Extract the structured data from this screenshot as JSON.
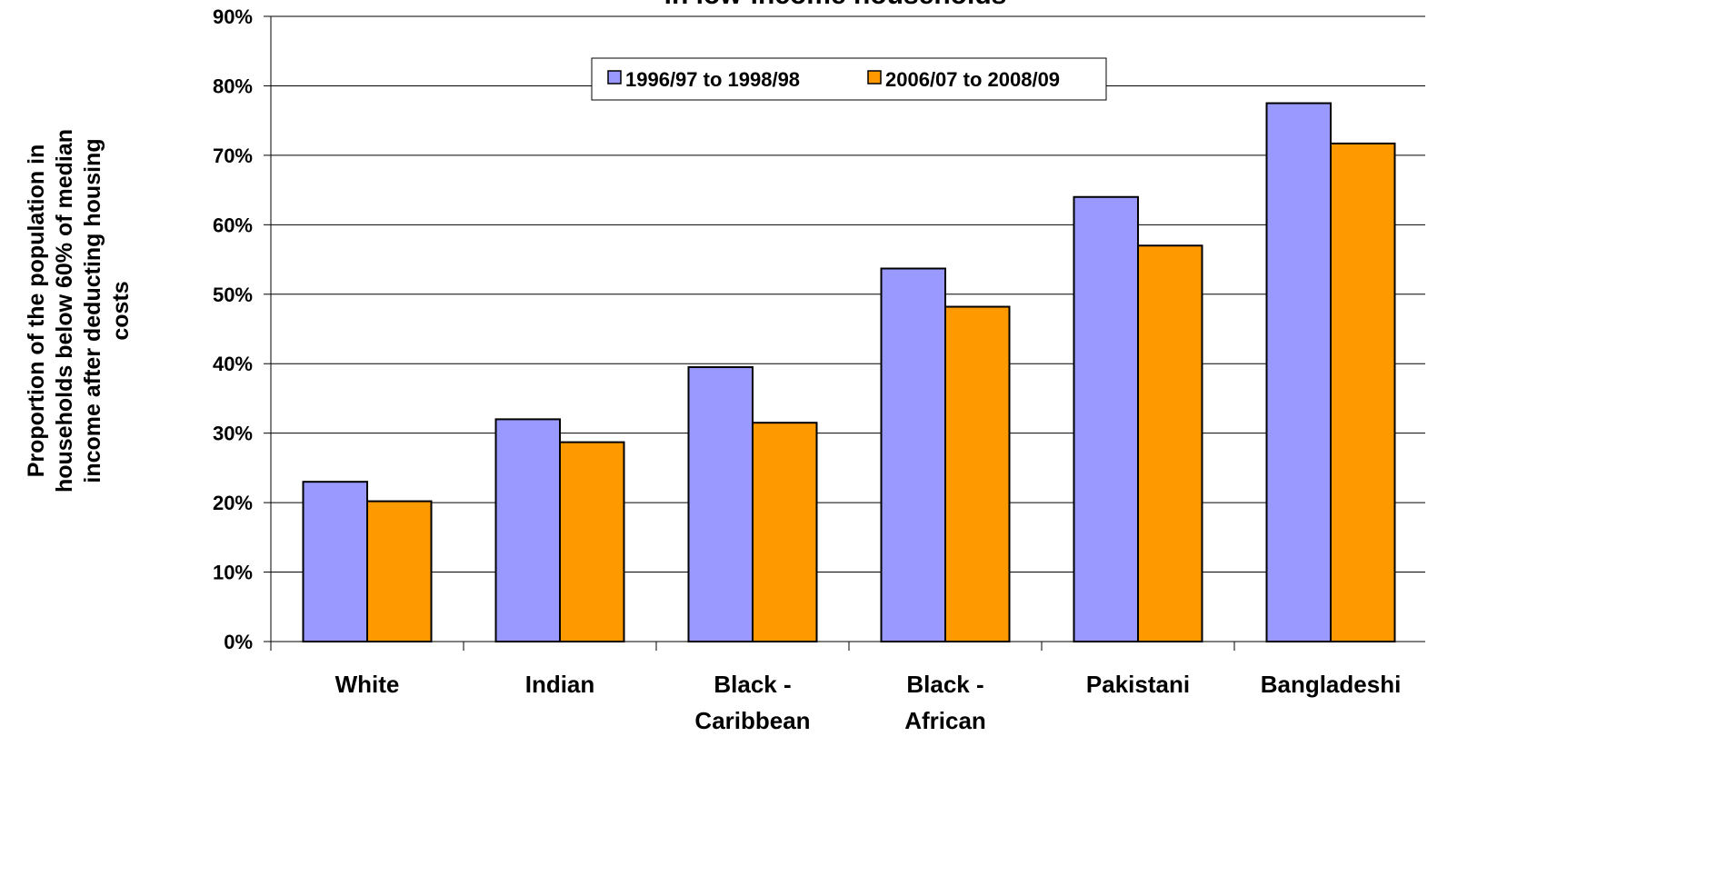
{
  "chart_data": {
    "type": "bar",
    "title": "in low-income households",
    "ylabel_lines": [
      "Proportion of the population in",
      "households below 60% of median",
      "income after deducting housing",
      "costs"
    ],
    "xlabel": "",
    "categories": [
      [
        "White"
      ],
      [
        "Indian"
      ],
      [
        "Black -",
        "Caribbean"
      ],
      [
        "Black -",
        "African"
      ],
      [
        "Pakistani"
      ],
      [
        "Bangladeshi"
      ]
    ],
    "series": [
      {
        "name": "1996/97 to 1998/98",
        "color": "#9999ff",
        "values": [
          23,
          32,
          39.5,
          53.7,
          64,
          77.5
        ]
      },
      {
        "name": "2006/07 to 2008/09",
        "color": "#ff9900",
        "values": [
          20.2,
          28.7,
          31.5,
          48.2,
          57,
          71.7
        ]
      }
    ],
    "ylim": [
      0,
      90
    ],
    "yticks": [
      "0%",
      "10%",
      "20%",
      "30%",
      "40%",
      "50%",
      "60%",
      "70%",
      "80%",
      "90%"
    ],
    "grid": true,
    "legend_position": "top-center"
  }
}
